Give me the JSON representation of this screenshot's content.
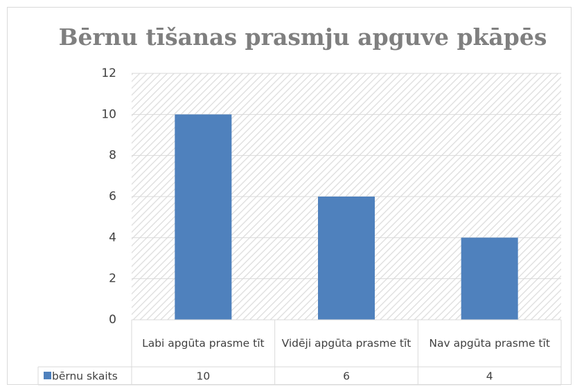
{
  "chart_data": {
    "type": "bar",
    "title": "Bērnu tīšanas prasmju apguve pkāpēs",
    "categories": [
      "Labi apgūta prasme tīt",
      "Vidēji apgūta prasme tīt",
      "Nav apgūta prasme tīt"
    ],
    "series": [
      {
        "name": "bērnu skaits",
        "color": "#4f81bd",
        "values": [
          10,
          6,
          4
        ]
      }
    ],
    "ylim": [
      0,
      12
    ],
    "yticks": [
      0,
      2,
      4,
      6,
      8,
      10,
      12
    ],
    "grid": true,
    "data_table": true
  }
}
